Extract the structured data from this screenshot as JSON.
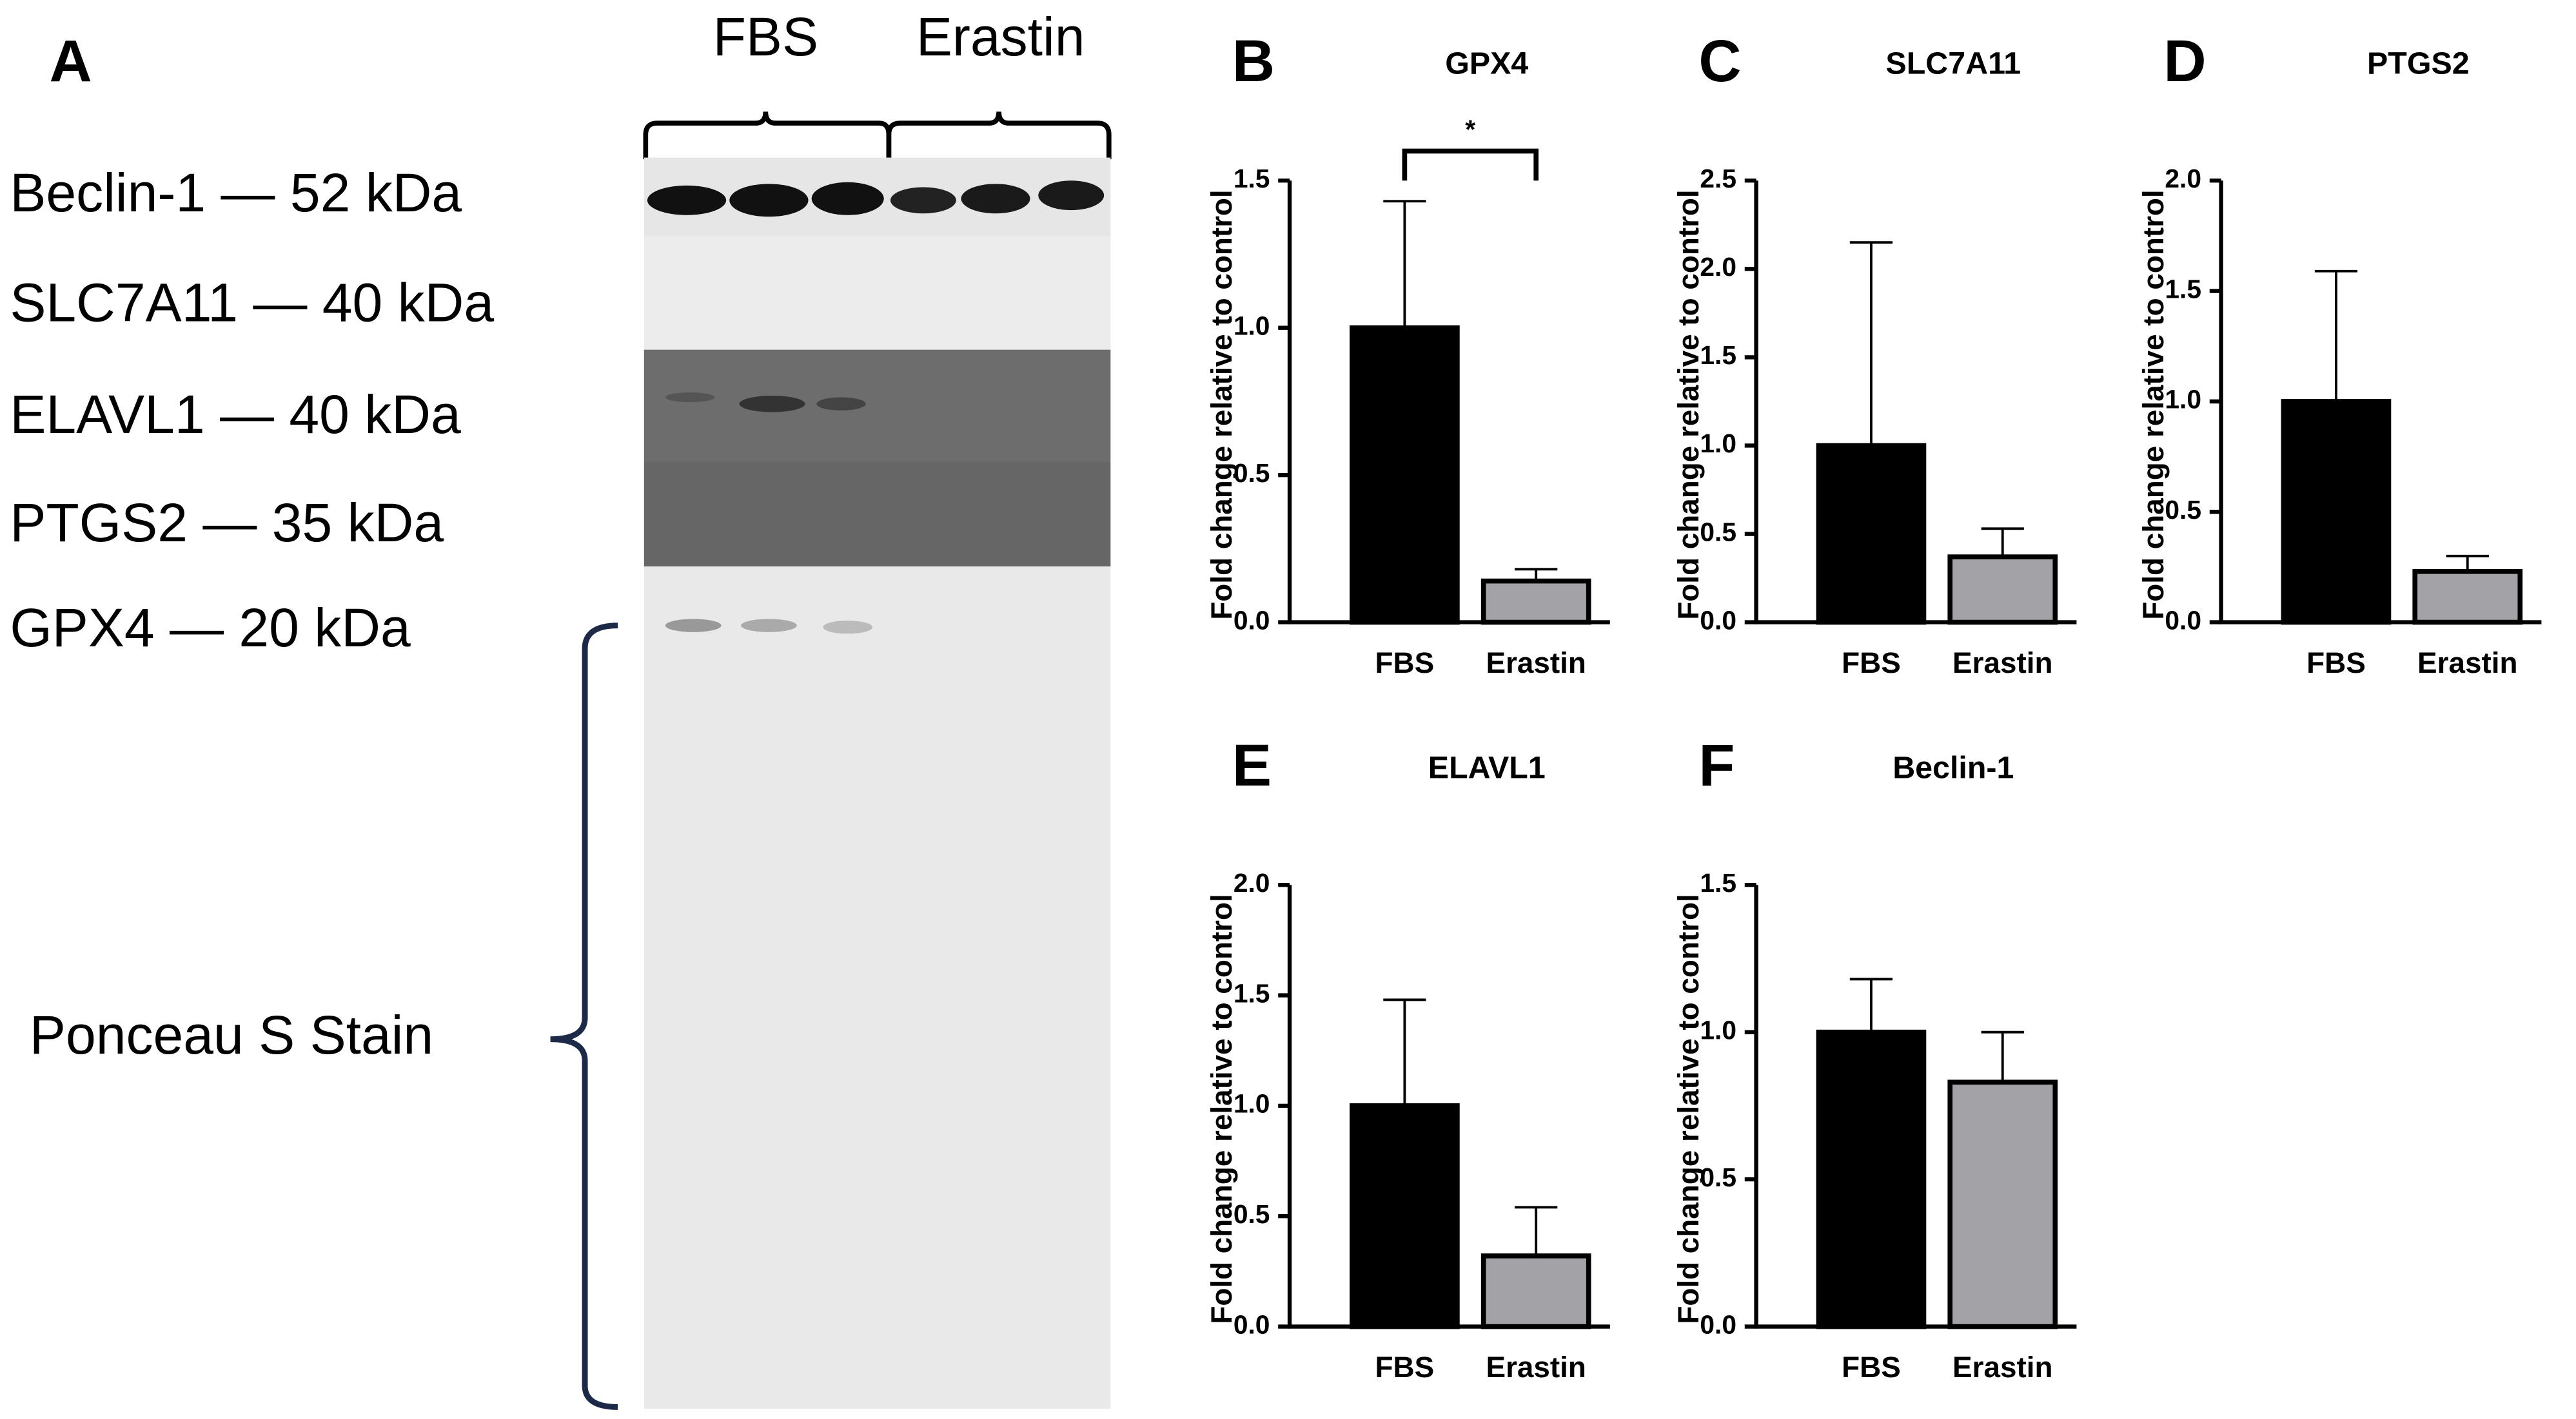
{
  "blot": {
    "panel": "A",
    "groups": [
      "FBS",
      "Erastin"
    ],
    "bands": [
      "Beclin-1 — 52 kDa",
      "SLC7A11 — 40 kDa",
      "ELAVL1 — 40 kDa",
      "PTGS2 — 35 kDa",
      "GPX4 — 20 kDa"
    ],
    "stain": "Ponceau S Stain"
  },
  "chart_data": [
    {
      "type": "bar",
      "panel": "B",
      "title": "GPX4",
      "ylabel": "Fold change relative to control",
      "categories": [
        "FBS",
        "Erastin"
      ],
      "values": [
        1.0,
        0.14
      ],
      "errors": [
        0.43,
        0.04
      ],
      "colors": [
        "#000000",
        "#a3a3a7"
      ],
      "ylim": [
        0,
        1.5
      ],
      "yticks": [
        {
          "value": 0,
          "label": "0.0"
        },
        0.5,
        {
          "value": 1,
          "label": "1.0"
        },
        1.5
      ],
      "significance": "*"
    },
    {
      "type": "bar",
      "panel": "C",
      "title": "SLC7A11",
      "ylabel": "Fold change relative to control",
      "categories": [
        "FBS",
        "Erastin"
      ],
      "values": [
        1.0,
        0.37
      ],
      "errors": [
        1.15,
        0.16
      ],
      "colors": [
        "#000000",
        "#a3a3a7"
      ],
      "ylim": [
        0,
        2.5
      ],
      "yticks": [
        {
          "value": 0,
          "label": "0.0"
        },
        0.5,
        {
          "value": 1,
          "label": "1.0"
        },
        1.5,
        {
          "value": 2,
          "label": "2.0"
        },
        2.5
      ]
    },
    {
      "type": "bar",
      "panel": "D",
      "title": "PTGS2",
      "ylabel": "Fold change relative to control",
      "categories": [
        "FBS",
        "Erastin"
      ],
      "values": [
        1.0,
        0.23
      ],
      "errors": [
        0.59,
        0.07
      ],
      "colors": [
        "#000000",
        "#a3a3a7"
      ],
      "ylim": [
        0,
        2
      ],
      "yticks": [
        {
          "value": 0,
          "label": "0.0"
        },
        0.5,
        {
          "value": 1,
          "label": "1.0"
        },
        1.5,
        {
          "value": 2,
          "label": "2.0"
        }
      ]
    },
    {
      "type": "bar",
      "panel": "E",
      "title": "ELAVL1",
      "ylabel": "Fold change relative to control",
      "categories": [
        "FBS",
        "Erastin"
      ],
      "values": [
        1.0,
        0.32
      ],
      "errors": [
        0.48,
        0.22
      ],
      "colors": [
        "#000000",
        "#a3a3a7"
      ],
      "ylim": [
        0,
        2
      ],
      "yticks": [
        {
          "value": 0,
          "label": "0.0"
        },
        0.5,
        {
          "value": 1,
          "label": "1.0"
        },
        1.5,
        {
          "value": 2,
          "label": "2.0"
        }
      ]
    },
    {
      "type": "bar",
      "panel": "F",
      "title": "Beclin-1",
      "ylabel": "Fold change relative to control",
      "categories": [
        "FBS",
        "Erastin"
      ],
      "values": [
        1.0,
        0.83
      ],
      "errors": [
        0.18,
        0.17
      ],
      "colors": [
        "#000000",
        "#a3a3a7"
      ],
      "ylim": [
        0,
        1.5
      ],
      "yticks": [
        {
          "value": 0,
          "label": "0.0"
        },
        0.5,
        {
          "value": 1,
          "label": "1.0"
        },
        1.5
      ]
    }
  ]
}
